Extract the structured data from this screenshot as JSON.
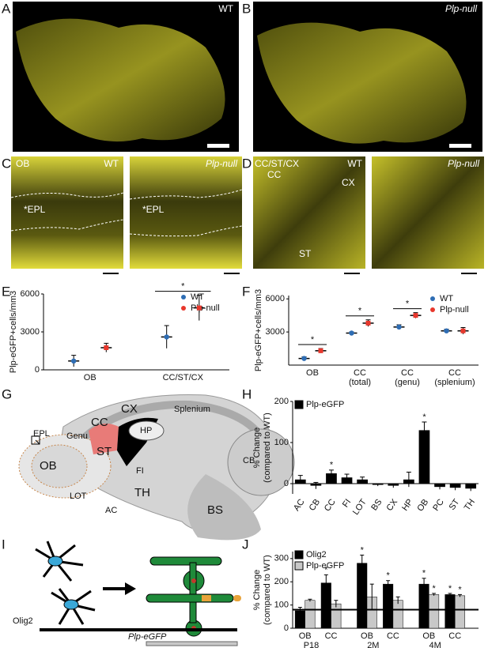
{
  "panels": [
    "A",
    "B",
    "C",
    "D",
    "E",
    "F",
    "G",
    "H",
    "I",
    "J"
  ],
  "image_labels": {
    "a_genotype": "WT",
    "b_genotype": "Plp-null",
    "c_region": "OB",
    "c_wt": "WT",
    "c_wt_layer": "*EPL",
    "c_null": "Plp-null",
    "c_null_layer": "*EPL",
    "d_region": "CC/ST/CX",
    "d_wt": "WT",
    "d_cc": "CC",
    "d_cx": "CX",
    "d_st": "ST",
    "d_null": "Plp-null"
  },
  "diagram_g": {
    "epl": "EPL",
    "ob": "OB",
    "lot": "LOT",
    "ac": "AC",
    "genu": "Genu",
    "cc": "CC",
    "cx": "CX",
    "splenium": "Splenium",
    "hp": "HP",
    "st": "ST",
    "fi": "FI",
    "th": "TH",
    "cb": "CB",
    "bs": "BS"
  },
  "diagram_i": {
    "olig2": "Olig2",
    "plp": "Plp-eGFP"
  },
  "chart_data": [
    {
      "type": "dot",
      "ylabel": [
        "Plp-eGFP+cells/mm3"
      ],
      "categories": [
        "OB",
        "CC/ST/CX"
      ],
      "series": [
        {
          "name": "WT",
          "color": "#2e6db4",
          "marker": "circle",
          "values": [
            700,
            2600
          ],
          "errors": [
            450,
            900
          ]
        },
        {
          "name": "Plp-null",
          "color": "#e8372c",
          "marker": "square",
          "values": [
            1750,
            4900
          ],
          "errors": [
            350,
            1000
          ]
        }
      ],
      "significance": [
        null,
        "*"
      ],
      "ylim": [
        0,
        6000
      ],
      "yticks": [
        0,
        3000,
        6000
      ],
      "legend": "upper right"
    },
    {
      "type": "dot",
      "ylabel": [
        "Plp-eGFP+cells/mm3"
      ],
      "categories": [
        [
          "OB"
        ],
        [
          "CC",
          "(total)"
        ],
        [
          "CC",
          "(genu)"
        ],
        [
          "CC",
          "(splenium)"
        ]
      ],
      "series": [
        {
          "name": "WT",
          "color": "#2e6db4",
          "marker": "circle",
          "values": [
            600,
            2900,
            3450,
            3100
          ],
          "errors": [
            150,
            100,
            200,
            150
          ]
        },
        {
          "name": "Plp-null",
          "color": "#e8372c",
          "marker": "square",
          "values": [
            1300,
            3800,
            4500,
            3100
          ],
          "errors": [
            200,
            300,
            250,
            300
          ]
        }
      ],
      "significance": [
        "*",
        "*",
        "*",
        null
      ],
      "ylim": [
        0,
        6300
      ],
      "yticks": [
        3000,
        6000
      ],
      "legend": "upper right"
    },
    {
      "type": "bar",
      "ylabel": [
        "% Change",
        "(compared to WT)"
      ],
      "categories": [
        "AC",
        "CB",
        "CC",
        "FI",
        "LOT",
        "BS",
        "CX",
        "HP",
        "OB",
        "PC",
        "ST",
        "TH"
      ],
      "series": [
        {
          "name": "Plp-eGFP",
          "color": "#000000",
          "values": [
            10,
            -5,
            25,
            15,
            10,
            -3,
            -5,
            10,
            130,
            -8,
            -10,
            -12
          ],
          "errors": [
            10,
            8,
            8,
            8,
            6,
            3,
            5,
            18,
            20,
            6,
            6,
            6
          ],
          "stars": [
            null,
            null,
            "*",
            null,
            null,
            null,
            null,
            null,
            "*",
            null,
            null,
            null
          ]
        }
      ],
      "ylim": [
        -25,
        200
      ],
      "yticks": [
        0,
        100,
        200
      ],
      "legend": "upper left"
    },
    {
      "type": "grouped_bar",
      "ylabel": [
        "% Change",
        "(compared to WT)"
      ],
      "groups": [
        "P18",
        "2M",
        "4M"
      ],
      "categories": [
        "OB",
        "CC",
        "OB",
        "CC",
        "OB",
        "CC"
      ],
      "series": [
        {
          "name": "Olig2",
          "color": "#000000",
          "values": [
            75,
            195,
            280,
            190,
            190,
            145
          ],
          "errors": [
            15,
            35,
            35,
            15,
            25,
            5
          ],
          "stars": [
            null,
            "*",
            "*",
            "*",
            "*",
            "*"
          ]
        },
        {
          "name": "Plp-eGFP",
          "color": "#c8c8c8",
          "values": [
            120,
            105,
            135,
            120,
            145,
            140
          ],
          "errors": [
            5,
            15,
            55,
            15,
            5,
            5
          ],
          "stars": [
            null,
            null,
            null,
            null,
            "*",
            "*"
          ]
        }
      ],
      "refline": 80,
      "ylim": [
        0,
        330
      ],
      "yticks": [
        0,
        100,
        200,
        300
      ],
      "legend": "upper left"
    }
  ]
}
